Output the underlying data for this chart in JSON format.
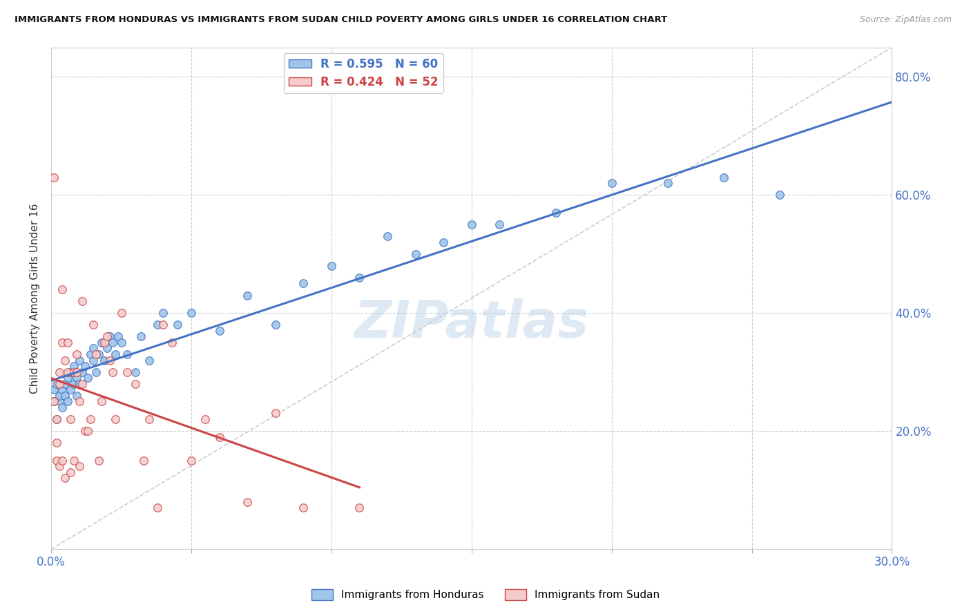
{
  "title": "IMMIGRANTS FROM HONDURAS VS IMMIGRANTS FROM SUDAN CHILD POVERTY AMONG GIRLS UNDER 16 CORRELATION CHART",
  "source": "Source: ZipAtlas.com",
  "ylabel": "Child Poverty Among Girls Under 16",
  "xlim": [
    0.0,
    0.3
  ],
  "ylim": [
    0.0,
    0.85
  ],
  "x_ticks": [
    0.0,
    0.05,
    0.1,
    0.15,
    0.2,
    0.25,
    0.3
  ],
  "y_ticks": [
    0.0,
    0.2,
    0.4,
    0.6,
    0.8
  ],
  "y_tick_labels": [
    "",
    "20.0%",
    "40.0%",
    "60.0%",
    "80.0%"
  ],
  "R_honduras": 0.595,
  "N_honduras": 60,
  "R_sudan": 0.424,
  "N_sudan": 52,
  "color_honduras": "#9fc5e8",
  "color_sudan": "#f4cccc",
  "line_color_honduras": "#4472c4",
  "line_color_sudan": "#cc4444",
  "diagonal_color": "#cccccc",
  "watermark": "ZIPatlas",
  "background_color": "#ffffff",
  "honduras_x": [
    0.001,
    0.001,
    0.002,
    0.002,
    0.003,
    0.003,
    0.004,
    0.004,
    0.005,
    0.005,
    0.006,
    0.006,
    0.007,
    0.007,
    0.008,
    0.008,
    0.009,
    0.009,
    0.01,
    0.01,
    0.011,
    0.012,
    0.013,
    0.014,
    0.015,
    0.015,
    0.016,
    0.017,
    0.018,
    0.019,
    0.02,
    0.021,
    0.022,
    0.023,
    0.024,
    0.025,
    0.027,
    0.03,
    0.032,
    0.035,
    0.038,
    0.04,
    0.045,
    0.05,
    0.06,
    0.07,
    0.08,
    0.09,
    0.1,
    0.11,
    0.12,
    0.13,
    0.14,
    0.15,
    0.16,
    0.18,
    0.2,
    0.22,
    0.24,
    0.26
  ],
  "honduras_y": [
    0.25,
    0.27,
    0.22,
    0.28,
    0.25,
    0.26,
    0.24,
    0.27,
    0.26,
    0.28,
    0.25,
    0.29,
    0.27,
    0.3,
    0.28,
    0.31,
    0.26,
    0.29,
    0.28,
    0.32,
    0.3,
    0.31,
    0.29,
    0.33,
    0.32,
    0.34,
    0.3,
    0.33,
    0.35,
    0.32,
    0.34,
    0.36,
    0.35,
    0.33,
    0.36,
    0.35,
    0.33,
    0.3,
    0.36,
    0.32,
    0.38,
    0.4,
    0.38,
    0.4,
    0.37,
    0.43,
    0.38,
    0.45,
    0.48,
    0.46,
    0.53,
    0.5,
    0.52,
    0.55,
    0.55,
    0.57,
    0.62,
    0.62,
    0.63,
    0.6
  ],
  "sudan_x": [
    0.001,
    0.001,
    0.002,
    0.002,
    0.002,
    0.003,
    0.003,
    0.003,
    0.004,
    0.004,
    0.004,
    0.005,
    0.005,
    0.006,
    0.006,
    0.007,
    0.007,
    0.008,
    0.008,
    0.009,
    0.009,
    0.01,
    0.01,
    0.011,
    0.011,
    0.012,
    0.013,
    0.014,
    0.015,
    0.016,
    0.017,
    0.018,
    0.019,
    0.02,
    0.021,
    0.022,
    0.023,
    0.025,
    0.027,
    0.03,
    0.033,
    0.035,
    0.038,
    0.04,
    0.043,
    0.05,
    0.055,
    0.06,
    0.07,
    0.08,
    0.09,
    0.11
  ],
  "sudan_y": [
    0.63,
    0.25,
    0.15,
    0.18,
    0.22,
    0.14,
    0.28,
    0.3,
    0.35,
    0.44,
    0.15,
    0.12,
    0.32,
    0.3,
    0.35,
    0.13,
    0.22,
    0.3,
    0.15,
    0.3,
    0.33,
    0.14,
    0.25,
    0.28,
    0.42,
    0.2,
    0.2,
    0.22,
    0.38,
    0.33,
    0.15,
    0.25,
    0.35,
    0.36,
    0.32,
    0.3,
    0.22,
    0.4,
    0.3,
    0.28,
    0.15,
    0.22,
    0.07,
    0.38,
    0.35,
    0.15,
    0.22,
    0.19,
    0.08,
    0.23,
    0.07,
    0.07
  ]
}
